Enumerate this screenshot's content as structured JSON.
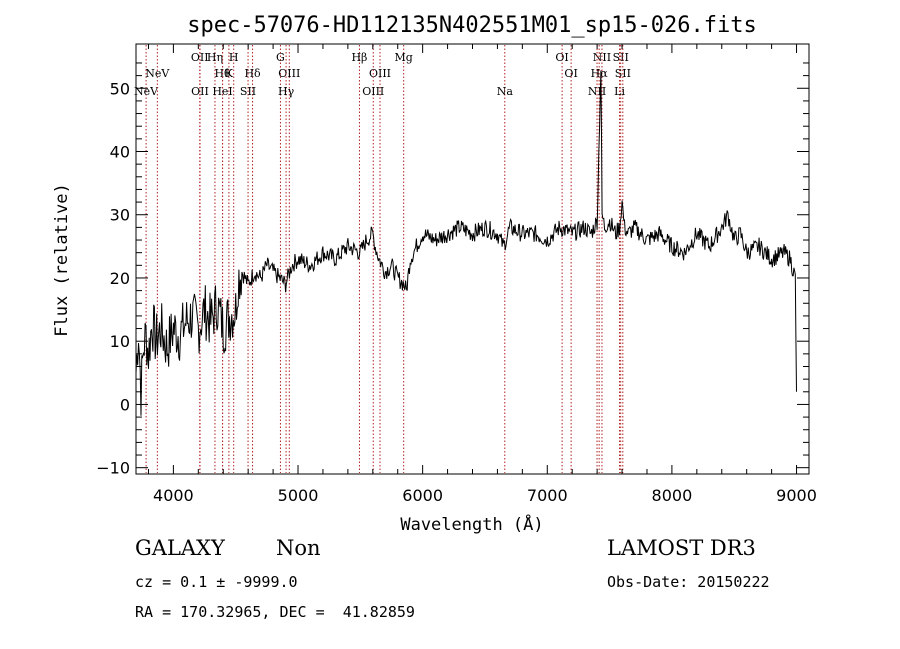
{
  "chart_data": {
    "type": "line",
    "title": "spec-57076-HD112135N402551M01_sp15-026.fits",
    "xlabel": "Wavelength (Å)",
    "ylabel": "Flux (relative)",
    "xlim": [
      3700,
      9100
    ],
    "ylim": [
      -11,
      57
    ],
    "xticks": [
      4000,
      5000,
      6000,
      7000,
      8000,
      9000
    ],
    "yticks": [
      -10,
      0,
      10,
      20,
      30,
      40,
      50
    ],
    "series": [
      {
        "name": "flux",
        "x": [
          3700,
          3720,
          3740,
          3760,
          3780,
          3800,
          3830,
          3860,
          3900,
          3950,
          4000,
          4050,
          4100,
          4150,
          4200,
          4250,
          4300,
          4350,
          4400,
          4450,
          4500,
          4520,
          4550,
          4600,
          4650,
          4700,
          4750,
          4800,
          4850,
          4900,
          4950,
          5000,
          5100,
          5200,
          5300,
          5400,
          5500,
          5550,
          5600,
          5620,
          5650,
          5700,
          5750,
          5800,
          5850,
          5870,
          5900,
          5950,
          6000,
          6100,
          6200,
          6300,
          6400,
          6500,
          6600,
          6650,
          6700,
          6800,
          6900,
          7000,
          7100,
          7200,
          7300,
          7350,
          7400,
          7420,
          7430,
          7440,
          7460,
          7500,
          7550,
          7580,
          7600,
          7620,
          7650,
          7700,
          7800,
          7900,
          8000,
          8100,
          8200,
          8300,
          8400,
          8450,
          8500,
          8550,
          8600,
          8700,
          8800,
          8900,
          8950,
          8990,
          9000
        ],
        "values": [
          5,
          12,
          2,
          9,
          11,
          8,
          13,
          10,
          12,
          9,
          12,
          11,
          13,
          14,
          12,
          15,
          13,
          16,
          12,
          14,
          15,
          20,
          21,
          19,
          21,
          20,
          22,
          21,
          20,
          19,
          22,
          23,
          22,
          24,
          23,
          25,
          24,
          26,
          27,
          25,
          23,
          21,
          22,
          20,
          19,
          18,
          23,
          25,
          27,
          26,
          27,
          28,
          27,
          28,
          27,
          25,
          28,
          27,
          27,
          26,
          28,
          27,
          28,
          27,
          29,
          45,
          53,
          30,
          28,
          29,
          27,
          28,
          32,
          28,
          27,
          28,
          26,
          27,
          25,
          24,
          27,
          25,
          28,
          30,
          26,
          27,
          24,
          25,
          23,
          24,
          23,
          20,
          2
        ]
      }
    ],
    "line_markers": [
      {
        "name": "NeV",
        "wavelength": 3346,
        "row": "bottom"
      },
      {
        "name": "NeV",
        "wavelength": 3426,
        "row": "middle"
      },
      {
        "name": "OII",
        "wavelength": 3727,
        "row": "top"
      },
      {
        "name": "OII",
        "wavelength": 3729,
        "row": "bottom"
      },
      {
        "name": "Hη",
        "wavelength": 3835,
        "row": "top"
      },
      {
        "name": "Hθ",
        "wavelength": 3889,
        "row": "middle"
      },
      {
        "name": "HeI",
        "wavelength": 3889,
        "row": "bottom"
      },
      {
        "name": "H",
        "wavelength": 3968,
        "row": "top"
      },
      {
        "name": "K",
        "wavelength": 3934,
        "row": "middle"
      },
      {
        "name": "Hδ",
        "wavelength": 4102,
        "row": "middle"
      },
      {
        "name": "SII",
        "wavelength": 4070,
        "row": "bottom"
      },
      {
        "name": "G",
        "wavelength": 4300,
        "row": "top"
      },
      {
        "name": "OIII",
        "wavelength": 4363,
        "row": "middle"
      },
      {
        "name": "Hγ",
        "wavelength": 4340,
        "row": "bottom"
      },
      {
        "name": "Hβ",
        "wavelength": 4861,
        "row": "top"
      },
      {
        "name": "OIII",
        "wavelength": 5007,
        "row": "middle"
      },
      {
        "name": "OIII",
        "wavelength": 4959,
        "row": "bottom"
      },
      {
        "name": "Mg",
        "wavelength": 5175,
        "row": "top"
      },
      {
        "name": "Na",
        "wavelength": 5893,
        "row": "bottom"
      },
      {
        "name": "OI",
        "wavelength": 6300,
        "row": "top"
      },
      {
        "name": "OI",
        "wavelength": 6364,
        "row": "middle"
      },
      {
        "name": "NII",
        "wavelength": 6583,
        "row": "top"
      },
      {
        "name": "Hα",
        "wavelength": 6563,
        "row": "middle"
      },
      {
        "name": "NII",
        "wavelength": 6548,
        "row": "bottom"
      },
      {
        "name": "SII",
        "wavelength": 6716,
        "row": "top"
      },
      {
        "name": "SII",
        "wavelength": 6731,
        "row": "middle"
      },
      {
        "name": "Li",
        "wavelength": 6708,
        "row": "bottom"
      }
    ],
    "marker_redshift_factor": 1.13,
    "colors": {
      "line": "#000000",
      "markers": "#b22222"
    }
  },
  "info": {
    "object_class": "GALAXY",
    "subclass": "Non",
    "survey": "LAMOST DR3",
    "cz": "cz = 0.1 ± -9999.0",
    "obs_date": "Obs-Date: 20150222",
    "coords": "RA = 170.32965, DEC =  41.82859"
  }
}
